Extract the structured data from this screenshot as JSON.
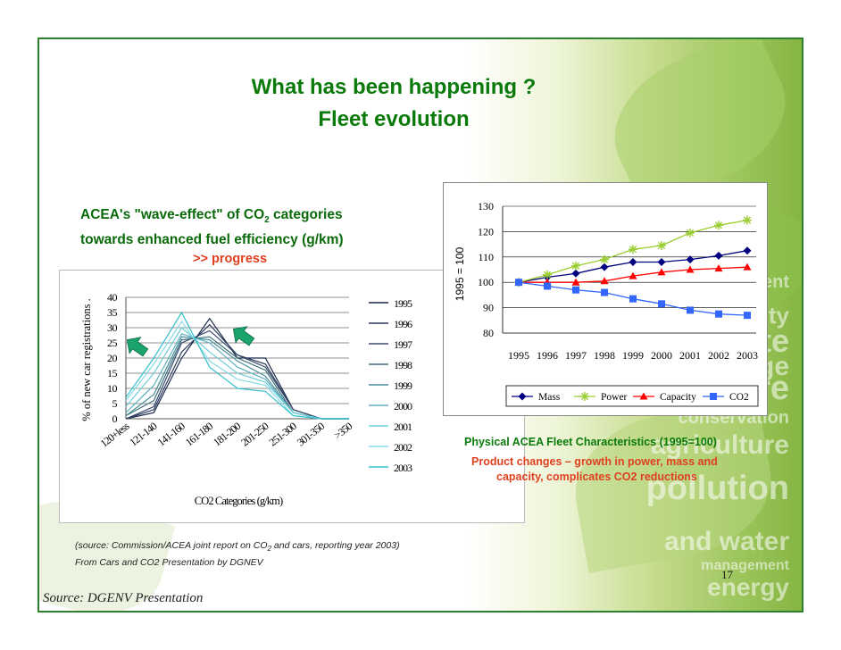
{
  "title": {
    "line1": "What has been happening ?",
    "line2": "Fleet evolution"
  },
  "left_heading": {
    "line1_pre": "ACEA's \"wave-effect\" of CO",
    "line1_sub": "2",
    "line1_post": " categories",
    "line2": "towards enhanced fuel efficiency (g/km)"
  },
  "progress_label": ">> progress",
  "right_caption": "Physical ACEA Fleet Characteristics (1995=100)",
  "right_sub1": "Product changes – growth in power, mass and",
  "right_sub2": "capacity, complicates CO2 reductions",
  "source_note": {
    "pre": "(source: Commission/ACEA joint report on CO",
    "sub": "2",
    "post": " and cars, reporting year 2003)"
  },
  "from_note": "From Cars and CO2 Presentation by DGNEV",
  "page_number": "17",
  "source_footer": "Source: DGENV Presentation",
  "background_words": [
    "climate",
    "biodiversity",
    "change",
    "nature",
    "conservation",
    "agriculture",
    "pollution",
    "and water",
    "management",
    "energy",
    "development"
  ],
  "colors": {
    "title_green": "#0a7a0a",
    "accent_red": "#e04020",
    "frame_green": "#2f7d2f",
    "arrow_green": "#1aa36a"
  },
  "chart_data": [
    {
      "type": "line",
      "title": "",
      "xlabel": "CO2 Categories (g/km)",
      "ylabel": "% of new car registrations .",
      "categories": [
        "120+less",
        "121-140",
        "141-160",
        "161-180",
        "181-200",
        "201-250",
        "251-300",
        "301-350",
        ">350"
      ],
      "ylim": [
        0,
        40
      ],
      "yticks": [
        0,
        5,
        10,
        15,
        20,
        25,
        30,
        35,
        40
      ],
      "grid": true,
      "legend_position": "right",
      "series": [
        {
          "name": "1995",
          "color": "#1b2a4a",
          "values": [
            0,
            2,
            20,
            33,
            20,
            20,
            3,
            0,
            0
          ]
        },
        {
          "name": "1996",
          "color": "#2a3a5c",
          "values": [
            0,
            3,
            22,
            31,
            21,
            18,
            3,
            0,
            0
          ]
        },
        {
          "name": "1997",
          "color": "#3a4d70",
          "values": [
            0,
            4,
            25,
            29,
            21,
            17,
            3,
            0,
            0
          ]
        },
        {
          "name": "1998",
          "color": "#3d6f7a",
          "values": [
            1,
            6,
            26,
            27,
            20,
            16,
            2,
            0,
            0
          ]
        },
        {
          "name": "1999",
          "color": "#4a8f9a",
          "values": [
            1,
            8,
            27,
            26,
            19,
            14,
            2,
            0,
            0
          ]
        },
        {
          "name": "2000",
          "color": "#5eb2be",
          "values": [
            2,
            11,
            28,
            25,
            17,
            13,
            2,
            0,
            0
          ]
        },
        {
          "name": "2001",
          "color": "#70cdd8",
          "values": [
            4,
            15,
            30,
            22,
            15,
            12,
            2,
            0,
            0
          ]
        },
        {
          "name": "2002",
          "color": "#86dbe5",
          "values": [
            6,
            18,
            32,
            19,
            13,
            11,
            1,
            0,
            0
          ]
        },
        {
          "name": "2003",
          "color": "#35c0cf",
          "values": [
            7,
            20,
            35,
            17,
            10,
            9,
            1,
            0,
            0
          ]
        }
      ]
    },
    {
      "type": "line",
      "title": "",
      "xlabel": "",
      "ylabel": "1995 = 100",
      "x": [
        "1995",
        "1996",
        "1997",
        "1998",
        "1999",
        "2000",
        "2001",
        "2002",
        "2003"
      ],
      "ylim": [
        80,
        130
      ],
      "yticks": [
        80,
        90,
        100,
        110,
        120,
        130
      ],
      "grid": true,
      "legend_position": "bottom",
      "series": [
        {
          "name": "Mass",
          "color": "#000080",
          "marker": "diamond",
          "values": [
            100,
            102,
            103.5,
            106,
            108,
            108,
            109,
            110.5,
            112.5
          ]
        },
        {
          "name": "Power",
          "color": "#9acd32",
          "marker": "star",
          "values": [
            100,
            103,
            106.5,
            109,
            113,
            114.5,
            119.5,
            122.5,
            124.5
          ]
        },
        {
          "name": "Capacity",
          "color": "#ff0000",
          "marker": "triangle",
          "values": [
            100,
            100,
            100,
            100.5,
            102.5,
            104,
            105,
            105.5,
            106
          ]
        },
        {
          "name": "CO2",
          "color": "#3366ff",
          "marker": "square",
          "values": [
            100,
            98.5,
            97,
            96,
            93.5,
            91.5,
            89,
            87.5,
            87
          ]
        }
      ]
    }
  ]
}
